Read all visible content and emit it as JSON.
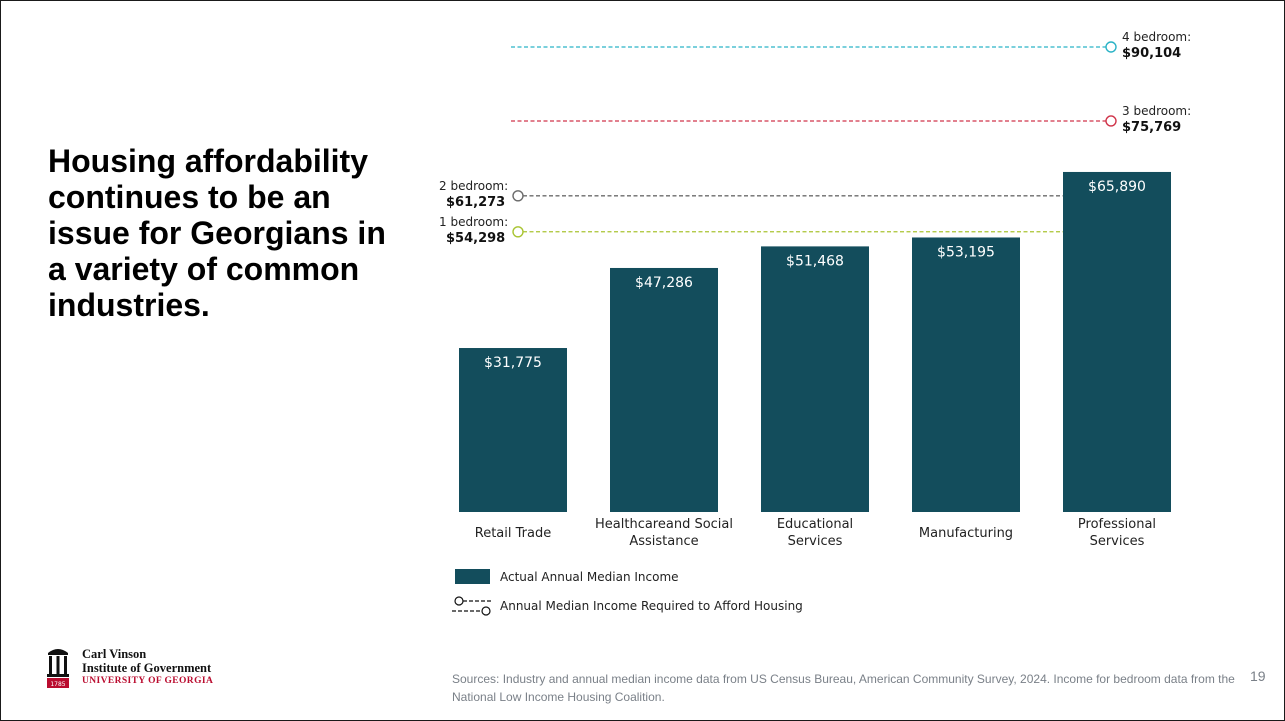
{
  "slide": {
    "headline": "Housing affordability continues to be an issue for Georgians in a variety of common industries.",
    "sources": "Sources: Industry and annual median income data from US Census Bureau, American Community Survey, 2024. Income for bedroom data from the National Low Income Housing Coalition.",
    "page_number": "19"
  },
  "logo": {
    "line1": "Carl Vinson",
    "line2": "Institute of Government",
    "line3": "UNIVERSITY OF GEORGIA",
    "year": "1785",
    "icon": "arch-icon",
    "color": "#ba0c2f"
  },
  "chart_data": {
    "type": "bar",
    "categories": [
      [
        "Retail Trade"
      ],
      [
        "Healthcareand Social",
        "Assistance"
      ],
      [
        "Educational",
        "Services"
      ],
      [
        "Manufacturing"
      ],
      [
        "Professional",
        "Services"
      ]
    ],
    "values": [
      31775,
      47286,
      51468,
      53195,
      65890
    ],
    "value_labels": [
      "$31,775",
      "$47,286",
      "$51,468",
      "$53,195",
      "$65,890"
    ],
    "ylim": [
      0,
      90104
    ],
    "bar_color": "#134d5c",
    "reference_lines": [
      {
        "label": "4 bedroom:",
        "value": 90104,
        "value_label": "$90,104",
        "color": "#2bb3c6",
        "label_side": "right"
      },
      {
        "label": "3 bedroom:",
        "value": 75769,
        "value_label": "$75,769",
        "color": "#d0344a",
        "label_side": "right"
      },
      {
        "label": "2 bedroom:",
        "value": 61273,
        "value_label": "$61,273",
        "color": "#6b6b6b",
        "label_side": "left"
      },
      {
        "label": "1 bedroom:",
        "value": 54298,
        "value_label": "$54,298",
        "color": "#a9c432",
        "label_side": "left"
      }
    ],
    "legend": [
      {
        "label": "Actual Annual Median Income",
        "kind": "bar"
      },
      {
        "label": "Annual Median Income Required to Afford Housing",
        "kind": "dashed-line"
      }
    ],
    "legend_position": "bottom-left",
    "grid": false
  }
}
